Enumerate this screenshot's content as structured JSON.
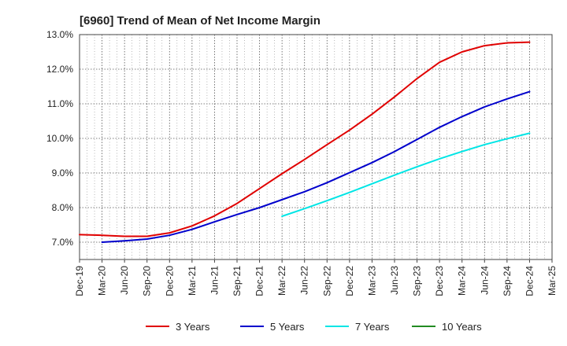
{
  "chart_data": {
    "type": "line",
    "title": "[6960]  Trend of Mean of Net Income Margin",
    "xlabel": "",
    "ylabel": "",
    "x_ticks": [
      "Dec-19",
      "Mar-20",
      "Jun-20",
      "Sep-20",
      "Dec-20",
      "Mar-21",
      "Jun-21",
      "Sep-21",
      "Dec-21",
      "Mar-22",
      "Jun-22",
      "Sep-22",
      "Dec-22",
      "Mar-23",
      "Jun-23",
      "Sep-23",
      "Dec-23",
      "Mar-24",
      "Jun-24",
      "Sep-24",
      "Dec-24",
      "Mar-25"
    ],
    "y_ticks": [
      "7.0%",
      "8.0%",
      "9.0%",
      "10.0%",
      "11.0%",
      "12.0%",
      "13.0%"
    ],
    "ylim": [
      6.5,
      13.0
    ],
    "grid": true,
    "legend_position": "bottom",
    "series": [
      {
        "name": "3 Years",
        "color": "#e00000",
        "points": [
          [
            "Dec-19",
            7.22
          ],
          [
            "Mar-20",
            7.2
          ],
          [
            "Jun-20",
            7.17
          ],
          [
            "Sep-20",
            7.17
          ],
          [
            "Dec-20",
            7.27
          ],
          [
            "Mar-21",
            7.47
          ],
          [
            "Jun-21",
            7.76
          ],
          [
            "Sep-21",
            8.12
          ],
          [
            "Dec-21",
            8.55
          ],
          [
            "Mar-22",
            8.98
          ],
          [
            "Jun-22",
            9.39
          ],
          [
            "Sep-22",
            9.82
          ],
          [
            "Dec-22",
            10.24
          ],
          [
            "Mar-23",
            10.7
          ],
          [
            "Jun-23",
            11.2
          ],
          [
            "Sep-23",
            11.73
          ],
          [
            "Dec-23",
            12.2
          ],
          [
            "Mar-24",
            12.5
          ],
          [
            "Jun-24",
            12.68
          ],
          [
            "Sep-24",
            12.76
          ],
          [
            "Dec-24",
            12.78
          ]
        ]
      },
      {
        "name": "5 Years",
        "color": "#0000cc",
        "points": [
          [
            "Mar-20",
            7.0
          ],
          [
            "Jun-20",
            7.04
          ],
          [
            "Sep-20",
            7.09
          ],
          [
            "Dec-20",
            7.2
          ],
          [
            "Mar-21",
            7.37
          ],
          [
            "Jun-21",
            7.59
          ],
          [
            "Sep-21",
            7.8
          ],
          [
            "Dec-21",
            8.0
          ],
          [
            "Mar-22",
            8.23
          ],
          [
            "Jun-22",
            8.46
          ],
          [
            "Sep-22",
            8.72
          ],
          [
            "Dec-22",
            9.01
          ],
          [
            "Mar-23",
            9.3
          ],
          [
            "Jun-23",
            9.62
          ],
          [
            "Sep-23",
            9.97
          ],
          [
            "Dec-23",
            10.32
          ],
          [
            "Mar-24",
            10.63
          ],
          [
            "Jun-24",
            10.91
          ],
          [
            "Sep-24",
            11.14
          ],
          [
            "Dec-24",
            11.35
          ]
        ]
      },
      {
        "name": "7 Years",
        "color": "#00e5e5",
        "points": [
          [
            "Mar-22",
            7.75
          ],
          [
            "Jun-22",
            7.97
          ],
          [
            "Sep-22",
            8.2
          ],
          [
            "Dec-22",
            8.44
          ],
          [
            "Mar-23",
            8.69
          ],
          [
            "Jun-23",
            8.94
          ],
          [
            "Sep-23",
            9.18
          ],
          [
            "Dec-23",
            9.41
          ],
          [
            "Mar-24",
            9.62
          ],
          [
            "Jun-24",
            9.82
          ],
          [
            "Sep-24",
            9.99
          ],
          [
            "Dec-24",
            10.15
          ]
        ]
      },
      {
        "name": "10 Years",
        "color": "#228b22",
        "points": []
      }
    ]
  }
}
